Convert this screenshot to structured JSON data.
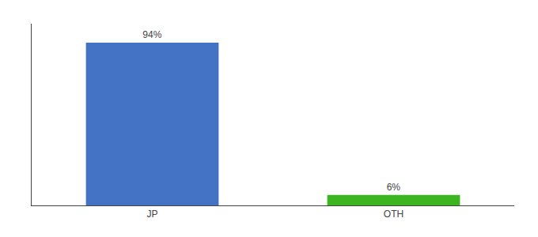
{
  "chart_data": {
    "type": "bar",
    "categories": [
      "JP",
      "OTH"
    ],
    "values": [
      94,
      6
    ],
    "value_labels": [
      "94%",
      "6%"
    ],
    "colors": [
      "#4472c4",
      "#3cb521"
    ],
    "ylim": [
      0,
      105
    ],
    "data_labels": true,
    "tick_labels": "x",
    "grid": false
  }
}
